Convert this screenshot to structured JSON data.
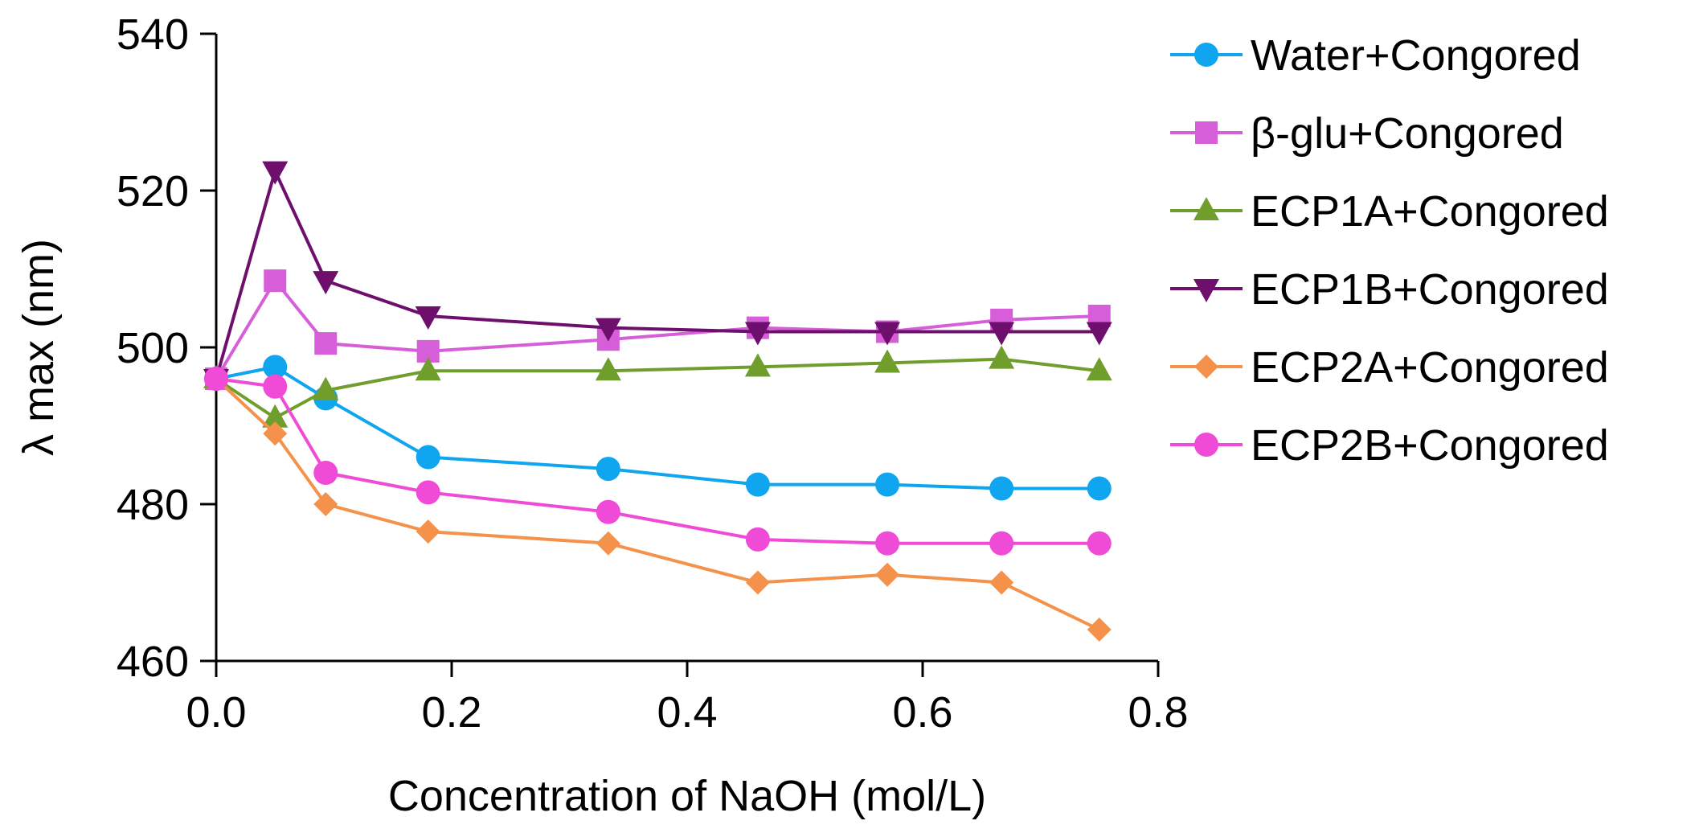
{
  "chart_data": {
    "type": "line",
    "title": "",
    "xlabel": "Concentration of NaOH (mol/L)",
    "ylabel": "λ max (nm)",
    "xlim": [
      0,
      0.8
    ],
    "ylim": [
      460,
      540
    ],
    "xticks": [
      0,
      0.2,
      0.4,
      0.6,
      0.8
    ],
    "xtick_labels": [
      "0.0",
      "0.2",
      "0.4",
      "0.6",
      "0.8"
    ],
    "yticks": [
      460,
      480,
      500,
      520,
      540
    ],
    "ytick_labels": [
      "460",
      "480",
      "500",
      "520",
      "540"
    ],
    "grid": false,
    "legend_position": "right",
    "x": [
      0,
      0.05,
      0.093,
      0.18,
      0.333,
      0.46,
      0.57,
      0.667,
      0.75
    ],
    "series": [
      {
        "name": "Water+Congored",
        "color": "#0fa5ef",
        "marker": "circle",
        "values": [
          496,
          497.5,
          493.5,
          486,
          484.5,
          482.5,
          482.5,
          482,
          482
        ]
      },
      {
        "name": "β-glu+Congored",
        "color": "#d65ed8",
        "marker": "square",
        "values": [
          496,
          508.5,
          500.5,
          499.5,
          501,
          502.5,
          502,
          503.5,
          504
        ]
      },
      {
        "name": "ECP1A+Congored",
        "color": "#6f9e2c",
        "marker": "triangle-up",
        "values": [
          496,
          491,
          494.5,
          497,
          497,
          497.5,
          498,
          498.5,
          497
        ]
      },
      {
        "name": "ECP1B+Congored",
        "color": "#6e0f6e",
        "marker": "triangle-down",
        "values": [
          496,
          522.5,
          508.5,
          504,
          502.5,
          502,
          502,
          502,
          502
        ]
      },
      {
        "name": "ECP2A+Congored",
        "color": "#f4914a",
        "marker": "diamond",
        "values": [
          496,
          489,
          480,
          476.5,
          475,
          470,
          471,
          470,
          464
        ]
      },
      {
        "name": "ECP2B+Congored",
        "color": "#f04bd6",
        "marker": "circle",
        "values": [
          496,
          495,
          484,
          481.5,
          479,
          475.5,
          475,
          475,
          475
        ]
      }
    ]
  }
}
